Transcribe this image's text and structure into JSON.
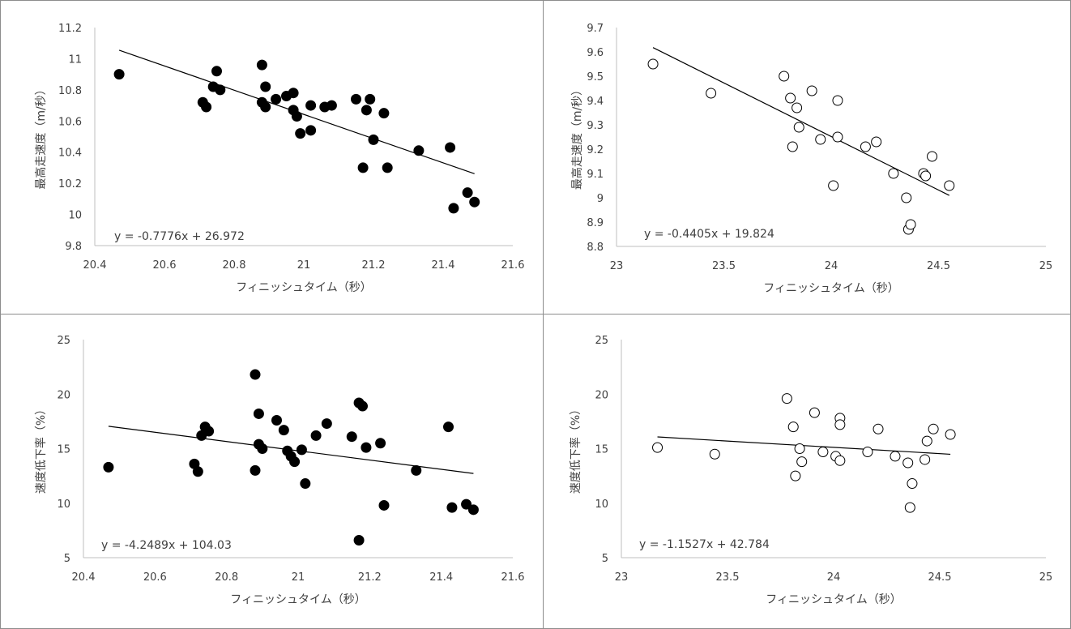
{
  "chart_data": [
    {
      "type": "scatter",
      "xlabel": "フィニッシュタイム（秒）",
      "ylabel": "最高走速度（m/秒）",
      "xlim": [
        20.4,
        21.6
      ],
      "ylim": [
        9.8,
        11.2
      ],
      "xticks": [
        "20.4",
        "20.6",
        "20.8",
        "21",
        "21.2",
        "21.4",
        "21.6"
      ],
      "yticks": [
        "9.8",
        "10",
        "10.2",
        "10.4",
        "10.6",
        "10.8",
        "11",
        "11.2"
      ],
      "marker": "filled",
      "equation": "y = -0.7776x + 26.972",
      "trendline": {
        "slope": -0.7776,
        "intercept": 26.972,
        "x_range": [
          20.47,
          21.49
        ]
      },
      "series": [
        {
          "x": [
            20.47,
            20.71,
            20.72,
            20.74,
            20.75,
            20.76,
            20.88,
            20.88,
            20.89,
            20.89,
            20.92,
            20.95,
            20.97,
            20.97,
            20.98,
            20.99,
            21.02,
            21.02,
            21.06,
            21.08,
            21.15,
            21.17,
            21.18,
            21.19,
            21.2,
            21.23,
            21.24,
            21.33,
            21.42,
            21.43,
            21.47,
            21.49
          ],
          "y": [
            10.9,
            10.72,
            10.69,
            10.82,
            10.92,
            10.8,
            10.96,
            10.72,
            10.82,
            10.69,
            10.74,
            10.76,
            10.78,
            10.67,
            10.63,
            10.52,
            10.7,
            10.54,
            10.69,
            10.7,
            10.74,
            10.3,
            10.67,
            10.74,
            10.48,
            10.65,
            10.3,
            10.41,
            10.43,
            10.04,
            10.14,
            10.08
          ]
        }
      ]
    },
    {
      "type": "scatter",
      "xlabel": "フィニッシュタイム（秒）",
      "ylabel": "最高走速度（m/秒）",
      "xlim": [
        23,
        25
      ],
      "ylim": [
        8.8,
        9.7
      ],
      "xticks": [
        "23",
        "23.5",
        "24",
        "24.5",
        "25"
      ],
      "yticks": [
        "8.8",
        "8.9",
        "9",
        "9.1",
        "9.2",
        "9.3",
        "9.4",
        "9.5",
        "9.6",
        "9.7"
      ],
      "marker": "open",
      "equation": "y = -0.4405x + 19.824",
      "trendline": {
        "slope": -0.4405,
        "intercept": 19.824,
        "x_range": [
          23.17,
          24.55
        ]
      },
      "series": [
        {
          "x": [
            23.17,
            23.44,
            23.78,
            23.81,
            23.82,
            23.84,
            23.85,
            23.91,
            23.95,
            24.01,
            24.03,
            24.03,
            24.16,
            24.21,
            24.29,
            24.35,
            24.36,
            24.37,
            24.43,
            24.44,
            24.47,
            24.55
          ],
          "y": [
            9.55,
            9.43,
            9.5,
            9.41,
            9.21,
            9.37,
            9.29,
            9.44,
            9.24,
            9.05,
            9.4,
            9.25,
            9.21,
            9.23,
            9.1,
            9.0,
            8.87,
            8.89,
            9.1,
            9.09,
            9.17,
            9.05
          ]
        }
      ]
    },
    {
      "type": "scatter",
      "xlabel": "フィニッシュタイム（秒）",
      "ylabel": "速度低下率（%）",
      "xlim": [
        20.4,
        21.6
      ],
      "ylim": [
        5,
        25
      ],
      "xticks": [
        "20.4",
        "20.6",
        "20.8",
        "21",
        "21.2",
        "21.4",
        "21.6"
      ],
      "yticks": [
        "5",
        "10",
        "15",
        "20",
        "25"
      ],
      "marker": "filled",
      "equation": "y = -4.2489x + 104.03",
      "trendline": {
        "slope": -4.2489,
        "intercept": 104.03,
        "x_range": [
          20.47,
          21.49
        ]
      },
      "series": [
        {
          "x": [
            20.47,
            20.71,
            20.72,
            20.73,
            20.74,
            20.75,
            20.88,
            20.88,
            20.89,
            20.89,
            20.9,
            20.94,
            20.96,
            20.97,
            20.98,
            20.99,
            21.01,
            21.02,
            21.05,
            21.08,
            21.15,
            21.17,
            21.17,
            21.18,
            21.19,
            21.23,
            21.24,
            21.33,
            21.42,
            21.43,
            21.47,
            21.49
          ],
          "y": [
            13.3,
            13.6,
            12.9,
            16.2,
            17.0,
            16.6,
            21.8,
            13.0,
            18.2,
            15.4,
            15.0,
            17.6,
            16.7,
            14.8,
            14.3,
            13.8,
            14.9,
            11.8,
            16.2,
            17.3,
            16.1,
            19.2,
            6.6,
            18.9,
            15.1,
            15.5,
            9.8,
            13.0,
            17.0,
            9.6,
            9.9,
            9.4
          ]
        }
      ]
    },
    {
      "type": "scatter",
      "xlabel": "フィニッシュタイム（秒）",
      "ylabel": "速度低下率（%）",
      "xlim": [
        23,
        25
      ],
      "ylim": [
        5,
        25
      ],
      "xticks": [
        "23",
        "23.5",
        "24",
        "24.5",
        "25"
      ],
      "yticks": [
        "5",
        "10",
        "15",
        "20",
        "25"
      ],
      "marker": "open",
      "equation": "y = -1.1527x + 42.784",
      "trendline": {
        "slope": -1.1527,
        "intercept": 42.784,
        "x_range": [
          23.17,
          24.55
        ]
      },
      "series": [
        {
          "x": [
            23.17,
            23.44,
            23.78,
            23.81,
            23.82,
            23.84,
            23.85,
            23.91,
            23.95,
            24.01,
            24.03,
            24.03,
            24.03,
            24.16,
            24.21,
            24.29,
            24.35,
            24.36,
            24.37,
            24.43,
            24.44,
            24.47,
            24.55
          ],
          "y": [
            15.1,
            14.5,
            19.6,
            17.0,
            12.5,
            15.0,
            13.8,
            18.3,
            14.7,
            14.3,
            17.8,
            17.2,
            13.9,
            14.7,
            16.8,
            14.3,
            13.7,
            9.6,
            11.8,
            14.0,
            15.7,
            16.8,
            16.3
          ]
        }
      ]
    }
  ]
}
